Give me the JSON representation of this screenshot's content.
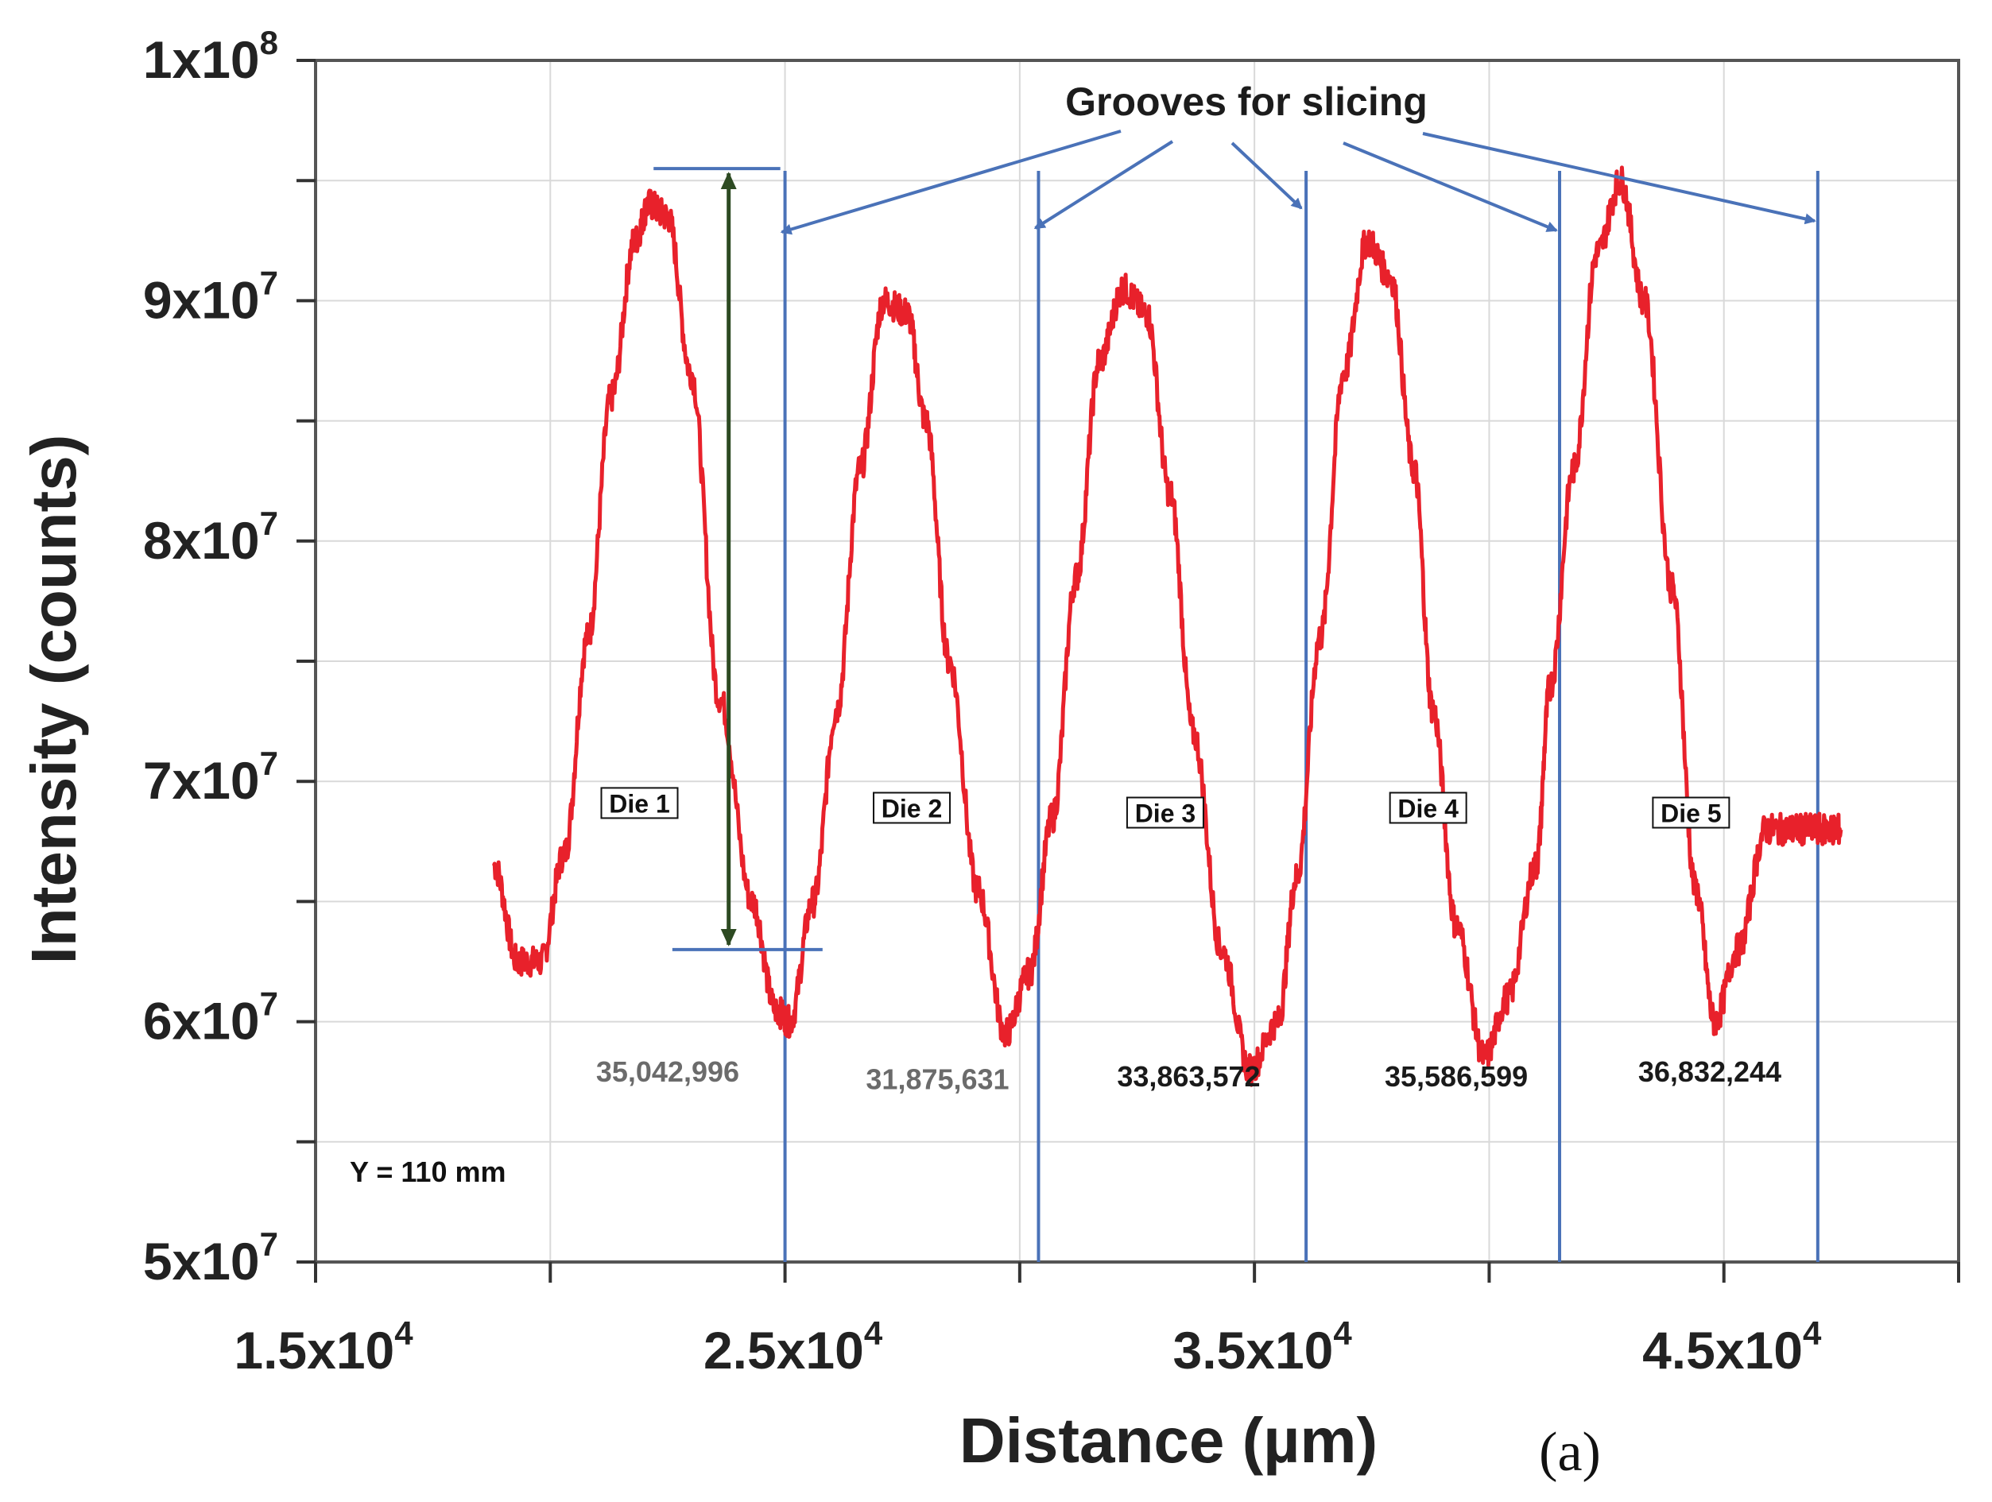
{
  "chart_data": {
    "type": "line",
    "title": "",
    "xlabel": "Distance (µm)",
    "ylabel": "Intensity (counts)",
    "panel_label": "(a)",
    "xlim": [
      15000,
      50000
    ],
    "ylim": [
      50000000,
      100000000
    ],
    "grid": true,
    "x_ticks": [
      {
        "value": 15000,
        "mantissa": "1.5x10",
        "exp": "4"
      },
      {
        "value": 25000,
        "mantissa": "2.5x10",
        "exp": "4"
      },
      {
        "value": 35000,
        "mantissa": "3.5x10",
        "exp": "4"
      },
      {
        "value": 45000,
        "mantissa": "4.5x10",
        "exp": "4"
      }
    ],
    "x_minor_ticks": [
      20000,
      30000,
      40000,
      50000
    ],
    "y_ticks": [
      {
        "value": 50000000,
        "mantissa": "5x10",
        "exp": "7"
      },
      {
        "value": 60000000,
        "mantissa": "6x10",
        "exp": "7"
      },
      {
        "value": 70000000,
        "mantissa": "7x10",
        "exp": "7"
      },
      {
        "value": 80000000,
        "mantissa": "8x10",
        "exp": "7"
      },
      {
        "value": 90000000,
        "mantissa": "9x10",
        "exp": "7"
      },
      {
        "value": 100000000,
        "mantissa": "1x10",
        "exp": "8"
      }
    ],
    "y_minor_ticks": [
      55000000,
      65000000,
      75000000,
      85000000,
      95000000
    ],
    "series": [
      {
        "name": "Intensity profile",
        "color": "#e8212b",
        "x": [
          18800,
          19300,
          19800,
          20300,
          20800,
          21300,
          21800,
          22100,
          22500,
          23000,
          23600,
          24300,
          24800,
          25100,
          25600,
          26100,
          26600,
          27100,
          27600,
          28000,
          28500,
          29100,
          29700,
          30200,
          30700,
          31200,
          31700,
          32200,
          32700,
          33200,
          33700,
          34300,
          34900,
          35500,
          35900,
          36400,
          36900,
          37400,
          37900,
          38400,
          38800,
          39300,
          39900,
          40400,
          41000,
          41300,
          41800,
          42300,
          42800,
          43300,
          43900,
          44400,
          44800,
          45300,
          45900,
          46400,
          46800,
          47200,
          47500
        ],
        "y": [
          66500000,
          62500000,
          62500000,
          67000000,
          76000000,
          86000000,
          92500000,
          94000000,
          93500000,
          87000000,
          73500000,
          65000000,
          60500000,
          60000000,
          65000000,
          73000000,
          83000000,
          90000000,
          89500000,
          85000000,
          75000000,
          65500000,
          59500000,
          62000000,
          68500000,
          78500000,
          87500000,
          90500000,
          89500000,
          82000000,
          72000000,
          63000000,
          58000000,
          60000000,
          66000000,
          76000000,
          87000000,
          92500000,
          91000000,
          83000000,
          73000000,
          64000000,
          58500000,
          61000000,
          66500000,
          74000000,
          83000000,
          92000000,
          95000000,
          90000000,
          78000000,
          65500000,
          60000000,
          63000000,
          68000000,
          68000000,
          68000000,
          68000000,
          68000000
        ]
      }
    ],
    "grooves_x": [
      25000,
      30400,
      36100,
      41500,
      47000
    ],
    "annotation_title": "Grooves for slicing",
    "dies": [
      {
        "label": "Die 1",
        "x": 21900,
        "y": 69000000
      },
      {
        "label": "Die 2",
        "x": 27700,
        "y": 68800000
      },
      {
        "label": "Die 3",
        "x": 33100,
        "y": 68600000
      },
      {
        "label": "Die 4",
        "x": 38700,
        "y": 68800000
      },
      {
        "label": "Die 5",
        "x": 44300,
        "y": 68600000
      }
    ],
    "differences": [
      {
        "text": "35,042,996",
        "x": 22500,
        "y": 57500000,
        "color": "#6b6b6b"
      },
      {
        "text": "31,875,631",
        "x": 28250,
        "y": 57200000,
        "color": "#6b6b6b"
      },
      {
        "text": "33,863,572",
        "x": 33600,
        "y": 57300000,
        "color": "#1a1a1a"
      },
      {
        "text": "35,586,599",
        "x": 39300,
        "y": 57300000,
        "color": "#1a1a1a"
      },
      {
        "text": "36,832,244",
        "x": 44700,
        "y": 57500000,
        "color": "#1a1a1a"
      }
    ],
    "y_position_label": "Y = 110 mm",
    "range_arrow": {
      "x": 23800,
      "y_top": 95500000,
      "y_bottom": 63000000,
      "color": "#2d4a22",
      "top_line_x": [
        22200,
        24900
      ],
      "bottom_line_x": [
        22600,
        25800
      ]
    }
  }
}
